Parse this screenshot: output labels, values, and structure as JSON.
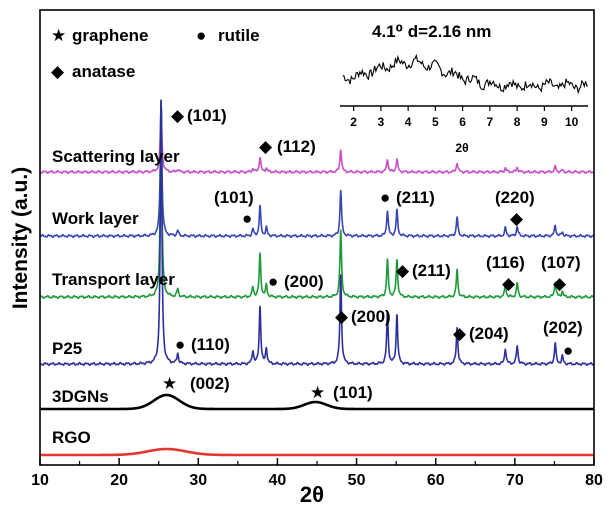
{
  "chart_data": {
    "type": "line",
    "title": "",
    "xlabel": "2θ",
    "ylabel": "Intensity (a.u.)",
    "xlim": [
      10,
      80
    ],
    "xticks": [
      "10",
      "20",
      "30",
      "40",
      "50",
      "60",
      "70",
      "80"
    ],
    "grid": false,
    "legend": [
      {
        "symbol": "★",
        "text": "graphene"
      },
      {
        "symbol": "●",
        "text": "rutile"
      },
      {
        "symbol": "◆",
        "text": "anatase"
      }
    ],
    "legend_position": "top-left",
    "tio2_peaks": [
      {
        "x": 25.3,
        "h": 1.0
      },
      {
        "x": 27.4,
        "h": 0.04
      },
      {
        "x": 36.9,
        "h": 0.05
      },
      {
        "x": 37.8,
        "h": 0.22
      },
      {
        "x": 38.6,
        "h": 0.06
      },
      {
        "x": 48.0,
        "h": 0.34
      },
      {
        "x": 53.9,
        "h": 0.19
      },
      {
        "x": 55.1,
        "h": 0.19
      },
      {
        "x": 62.7,
        "h": 0.14
      },
      {
        "x": 68.8,
        "h": 0.06
      },
      {
        "x": 70.3,
        "h": 0.07
      },
      {
        "x": 75.1,
        "h": 0.08
      },
      {
        "x": 76.0,
        "h": 0.03
      }
    ],
    "series": [
      {
        "name": "Scattering layer",
        "color": "#c84fc8",
        "peak_scale": 0.35
      },
      {
        "name": "Work layer",
        "color": "#3a45b5",
        "peak_scale": 1.0
      },
      {
        "name": "Transport layer",
        "color": "#1f9a3a",
        "peak_scale": 1.0
      },
      {
        "name": "P25",
        "color": "#2d2f9e",
        "peak_scale": 1.0
      },
      {
        "name": "3DGNs",
        "color": "#000000",
        "broad_peaks": [
          {
            "x": 26.0,
            "h": 14,
            "w": 1.6
          },
          {
            "x": 44.8,
            "h": 7,
            "w": 1.4
          }
        ]
      },
      {
        "name": "RGO",
        "color": "#e2372f",
        "broad_peaks": [
          {
            "x": 26.0,
            "h": 6,
            "w": 2.4
          }
        ]
      }
    ],
    "annotations": [
      {
        "series": "Scattering layer",
        "symbol": "◆",
        "text": "(101)"
      },
      {
        "series": "Scattering layer",
        "symbol": "◆",
        "text": "(112)"
      },
      {
        "series": "Work layer",
        "symbol": "●",
        "text": "(101)"
      },
      {
        "series": "Work layer",
        "symbol": "●",
        "text": "(211)"
      },
      {
        "series": "Work layer",
        "symbol": "◆",
        "text": "(220)"
      },
      {
        "series": "Transport layer",
        "symbol": "●",
        "text": "(200)"
      },
      {
        "series": "Transport layer",
        "symbol": "◆",
        "text": "(211)"
      },
      {
        "series": "Transport layer",
        "symbol": "◆",
        "text": "(116)"
      },
      {
        "series": "Transport layer",
        "symbol": "◆",
        "text": "(107)"
      },
      {
        "series": "P25",
        "symbol": "●",
        "text": "(110)"
      },
      {
        "series": "P25",
        "symbol": "◆",
        "text": "(200)"
      },
      {
        "series": "P25",
        "symbol": "◆",
        "text": "(204)"
      },
      {
        "series": "P25",
        "symbol": "●",
        "text": "(202)"
      },
      {
        "series": "3DGNs",
        "symbol": "★",
        "text": "(002)"
      },
      {
        "series": "3DGNs",
        "symbol": "★",
        "text": "(101)"
      }
    ],
    "inset": {
      "type": "line",
      "annotation": "4.1⁰  d=2.16 nm",
      "xlabel": "2θ",
      "xlim": [
        1.5,
        10.6
      ],
      "xticks": [
        "2",
        "3",
        "4",
        "5",
        "6",
        "7",
        "8",
        "9",
        "10"
      ],
      "peak_x": 4.1,
      "peak_d_nm": 2.16
    }
  }
}
